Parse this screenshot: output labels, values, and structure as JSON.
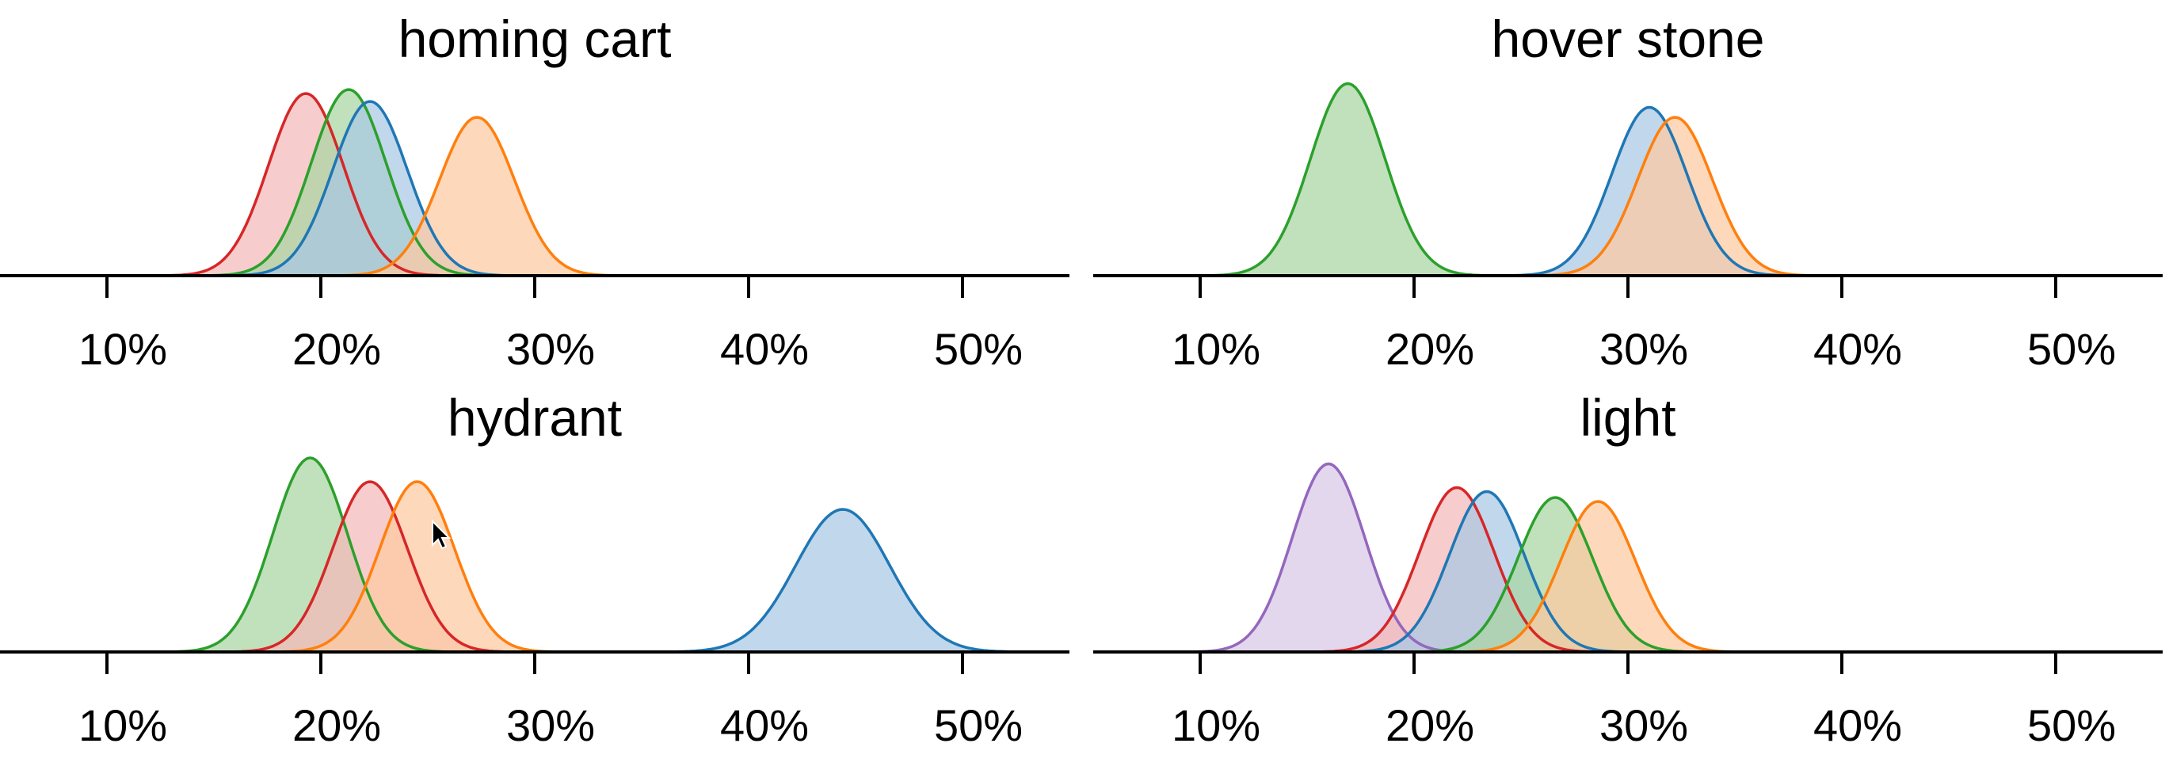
{
  "chart_data": [
    {
      "type": "area",
      "title": "homing cart",
      "xlabel": "",
      "ylabel": "",
      "xlim": [
        5,
        55
      ],
      "x_ticks": [
        10,
        20,
        30,
        40,
        50
      ],
      "tick_labels": [
        "10%",
        "20%",
        "30%",
        "40%",
        "50%"
      ],
      "grid": false,
      "legend": "none",
      "series": [
        {
          "color": "#d62728",
          "fill": "#f4b8b8",
          "mean": 19.3,
          "sd": 1.75,
          "peak": 0.92
        },
        {
          "color": "#2ca02c",
          "fill": "#a8d5a2",
          "mean": 21.3,
          "sd": 1.75,
          "peak": 0.94
        },
        {
          "color": "#1f77b4",
          "fill": "#a8c8e4",
          "mean": 22.3,
          "sd": 1.75,
          "peak": 0.88
        },
        {
          "color": "#ff7f0e",
          "fill": "#fdc9a0",
          "mean": 27.3,
          "sd": 1.75,
          "peak": 0.8
        }
      ]
    },
    {
      "type": "area",
      "title": "hover stone",
      "xlabel": "",
      "ylabel": "",
      "xlim": [
        5,
        55
      ],
      "x_ticks": [
        10,
        20,
        30,
        40,
        50
      ],
      "tick_labels": [
        "10%",
        "20%",
        "30%",
        "40%",
        "50%"
      ],
      "grid": false,
      "legend": "none",
      "series": [
        {
          "color": "#2ca02c",
          "fill": "#a8d5a2",
          "mean": 16.9,
          "sd": 1.75,
          "peak": 0.97
        },
        {
          "color": "#1f77b4",
          "fill": "#a8c8e4",
          "mean": 31.0,
          "sd": 1.75,
          "peak": 0.85
        },
        {
          "color": "#ff7f0e",
          "fill": "#fdc9a0",
          "mean": 32.2,
          "sd": 1.75,
          "peak": 0.8
        }
      ]
    },
    {
      "type": "area",
      "title": "hydrant",
      "xlabel": "",
      "ylabel": "",
      "xlim": [
        5,
        55
      ],
      "x_ticks": [
        10,
        20,
        30,
        40,
        50
      ],
      "tick_labels": [
        "10%",
        "20%",
        "30%",
        "40%",
        "50%"
      ],
      "grid": false,
      "legend": "none",
      "series": [
        {
          "color": "#2ca02c",
          "fill": "#a8d5a2",
          "mean": 19.5,
          "sd": 1.75,
          "peak": 0.98
        },
        {
          "color": "#d62728",
          "fill": "#f4b8b8",
          "mean": 22.3,
          "sd": 1.75,
          "peak": 0.86
        },
        {
          "color": "#ff7f0e",
          "fill": "#fdc9a0",
          "mean": 24.5,
          "sd": 1.75,
          "peak": 0.86
        },
        {
          "color": "#1f77b4",
          "fill": "#a8c8e4",
          "mean": 44.4,
          "sd": 2.2,
          "peak": 0.72
        }
      ]
    },
    {
      "type": "area",
      "title": "light",
      "xlabel": "",
      "ylabel": "",
      "xlim": [
        5,
        55
      ],
      "x_ticks": [
        10,
        20,
        30,
        40,
        50
      ],
      "tick_labels": [
        "10%",
        "20%",
        "30%",
        "40%",
        "50%"
      ],
      "grid": false,
      "legend": "none",
      "series": [
        {
          "color": "#9467bd",
          "fill": "#d8c8e8",
          "mean": 16.0,
          "sd": 1.7,
          "peak": 0.95
        },
        {
          "color": "#d62728",
          "fill": "#f4b8b8",
          "mean": 22.0,
          "sd": 1.75,
          "peak": 0.83
        },
        {
          "color": "#1f77b4",
          "fill": "#a8c8e4",
          "mean": 23.4,
          "sd": 1.75,
          "peak": 0.81
        },
        {
          "color": "#2ca02c",
          "fill": "#a8d5a2",
          "mean": 26.6,
          "sd": 1.75,
          "peak": 0.78
        },
        {
          "color": "#ff7f0e",
          "fill": "#fdc9a0",
          "mean": 28.6,
          "sd": 1.75,
          "peak": 0.76
        }
      ]
    }
  ]
}
